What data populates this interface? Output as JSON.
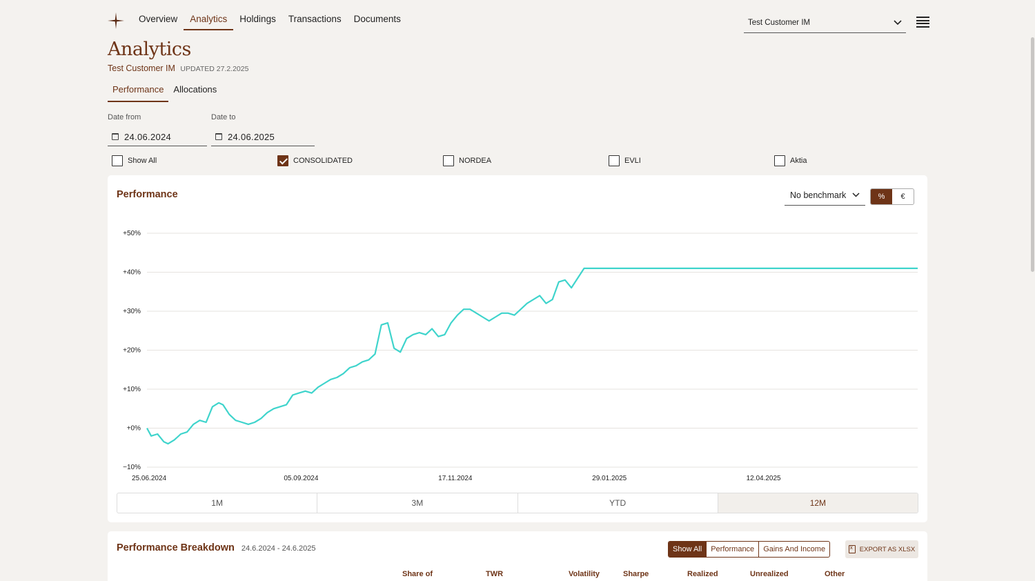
{
  "nav": {
    "items": [
      {
        "label": "Overview",
        "active": false
      },
      {
        "label": "Analytics",
        "active": true
      },
      {
        "label": "Holdings",
        "active": false
      },
      {
        "label": "Transactions",
        "active": false
      },
      {
        "label": "Documents",
        "active": false
      }
    ],
    "customer": "Test Customer IM"
  },
  "page": {
    "title": "Analytics",
    "customer": "Test Customer IM",
    "updated": "UPDATED 27.2.2025"
  },
  "subtabs": [
    {
      "label": "Performance",
      "active": true
    },
    {
      "label": "Allocations",
      "active": false
    }
  ],
  "filters": {
    "date_from_label": "Date from",
    "date_from": "24.06.2024",
    "date_to_label": "Date to",
    "date_to": "24.06.2025",
    "checks": [
      {
        "label": "Show All",
        "checked": false
      },
      {
        "label": "CONSOLIDATED",
        "checked": true
      },
      {
        "label": "NORDEA",
        "checked": false
      },
      {
        "label": "EVLI",
        "checked": false
      },
      {
        "label": "Aktia",
        "checked": false
      }
    ]
  },
  "performance": {
    "title": "Performance",
    "benchmark": "No benchmark",
    "unit_percent": "%",
    "unit_euro": "€",
    "periods": [
      {
        "label": "1M",
        "active": false
      },
      {
        "label": "3M",
        "active": false
      },
      {
        "label": "YTD",
        "active": false
      },
      {
        "label": "12M",
        "active": true
      }
    ]
  },
  "chart_data": {
    "type": "line",
    "y_tick_labels": [
      "+50%",
      "+40%",
      "+30%",
      "+20%",
      "+10%",
      "+0%",
      "−10%"
    ],
    "y_ticks": [
      50,
      40,
      30,
      20,
      10,
      0,
      -10
    ],
    "ylim": [
      -10,
      50
    ],
    "x_tick_labels": [
      "25.06.2024",
      "05.09.2024",
      "17.11.2024",
      "29.01.2025",
      "12.04.2025"
    ],
    "x_tick_days": [
      1,
      73,
      146,
      219,
      292
    ],
    "xlim_days": [
      0,
      365
    ],
    "grid": true,
    "series": [
      {
        "color": "#3fd4cc",
        "x": [
          0,
          2,
          5,
          8,
          10,
          13,
          16,
          19,
          22,
          25,
          28,
          31,
          34,
          36,
          39,
          42,
          45,
          48,
          51,
          54,
          57,
          60,
          63,
          66,
          69,
          72,
          75,
          78,
          81,
          84,
          87,
          90,
          93,
          96,
          99,
          102,
          105,
          108,
          111,
          114,
          117,
          120,
          123,
          126,
          129,
          132,
          135,
          138,
          141,
          144,
          147,
          150,
          153,
          156,
          159,
          162,
          165,
          168,
          171,
          174,
          177,
          180,
          183,
          186,
          189,
          192,
          195,
          198,
          201,
          204,
          207,
          210,
          213,
          216,
          219,
          222,
          225,
          228,
          231,
          234,
          237,
          240,
          243,
          365
        ],
        "y": [
          0,
          -2,
          -1.5,
          -3.5,
          -4,
          -3,
          -1.5,
          -1,
          1,
          2,
          1.5,
          5.5,
          6.5,
          6,
          3.5,
          2,
          1.5,
          1,
          1.5,
          2.5,
          4,
          5,
          5.5,
          6,
          8.5,
          9,
          9.5,
          9,
          10.5,
          11.5,
          12.5,
          13,
          14,
          15.5,
          16,
          17,
          17.5,
          19,
          26.5,
          27,
          20.5,
          19.5,
          23,
          24,
          24.5,
          24,
          25.5,
          23.5,
          24,
          27,
          29,
          30.5,
          30.5,
          29.5,
          28.5,
          27.5,
          28.5,
          29.5,
          29.5,
          29,
          30.5,
          32,
          33,
          34,
          32,
          33,
          37.5,
          38,
          36,
          38.5,
          41,
          41,
          41,
          41,
          41,
          41,
          41,
          41,
          41,
          41,
          41,
          41,
          41,
          41
        ]
      }
    ]
  },
  "breakdown": {
    "title": "Performance Breakdown",
    "range": "24.6.2024 - 24.6.2025",
    "filters": [
      {
        "label": "Show All",
        "active": true
      },
      {
        "label": "Performance",
        "active": false
      },
      {
        "label": "Gains And Income",
        "active": false
      }
    ],
    "export_label": "EXPORT AS XLSX",
    "columns": [
      "Share of",
      "TWR",
      "Volatility",
      "Sharpe",
      "Realized",
      "Unrealized",
      "Other"
    ]
  }
}
